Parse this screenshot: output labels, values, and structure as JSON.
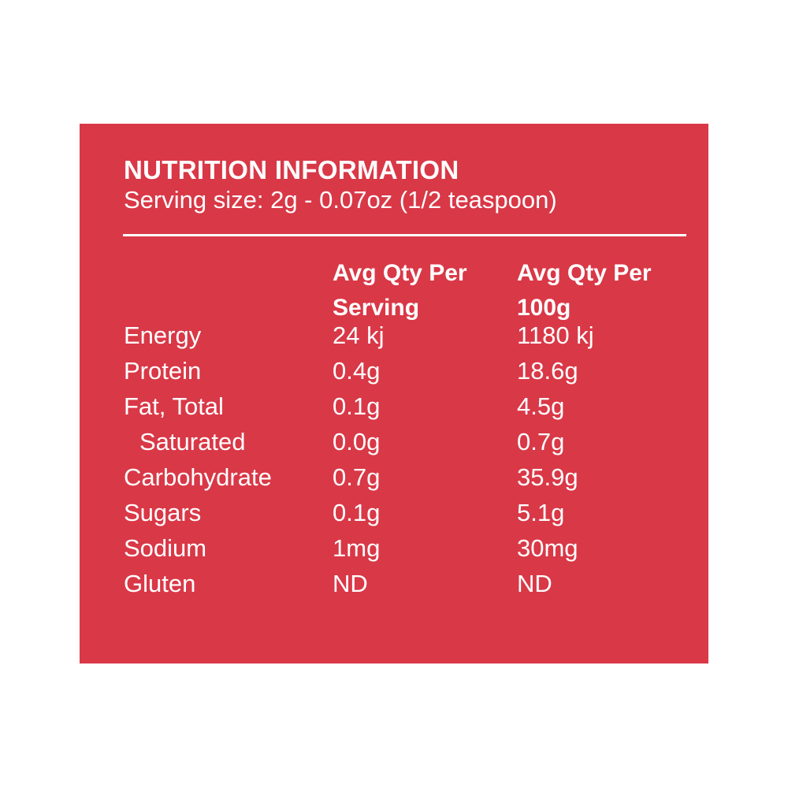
{
  "title": "NUTRITION INFORMATION",
  "serving_size": "Serving size: 2g - 0.07oz (1/2 teaspoon)",
  "colors": {
    "panel": "#d93847",
    "text": "#ffffff"
  },
  "headers": [
    {
      "line1": "Avg Qty Per",
      "line2": "Serving"
    },
    {
      "line1": "Avg Qty Per",
      "line2": "100g"
    }
  ],
  "rows": [
    {
      "nutrient": "Energy",
      "per_serving": "24 kj",
      "per_100g": "1180 kj"
    },
    {
      "nutrient": "Protein",
      "per_serving": "0.4g",
      "per_100g": "18.6g"
    },
    {
      "nutrient": "Fat, Total",
      "per_serving": "0.1g",
      "per_100g": "4.5g"
    },
    {
      "nutrient": "Saturated",
      "per_serving": "0.0g",
      "per_100g": "0.7g"
    },
    {
      "nutrient": "Carbohydrate",
      "per_serving": "0.7g",
      "per_100g": "35.9g"
    },
    {
      "nutrient": "Sugars",
      "per_serving": "0.1g",
      "per_100g": "5.1g"
    },
    {
      "nutrient": "Sodium",
      "per_serving": "1mg",
      "per_100g": "30mg"
    },
    {
      "nutrient": "Gluten",
      "per_serving": "ND",
      "per_100g": "ND"
    }
  ]
}
